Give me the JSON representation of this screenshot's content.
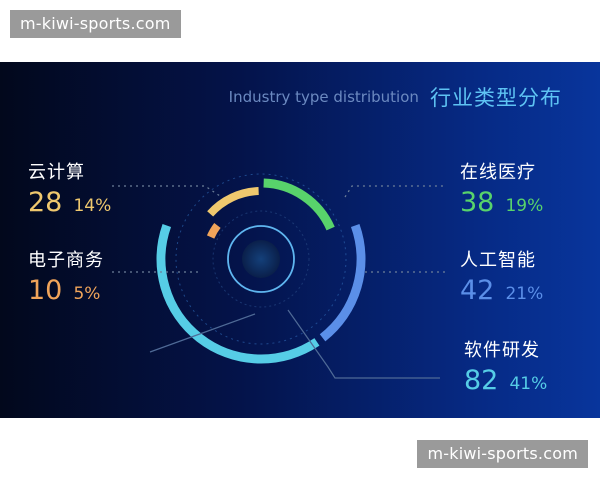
{
  "watermark": {
    "top": "m-kiwi-sports.com",
    "bottom": "m-kiwi-sports.com"
  },
  "chart_data": {
    "type": "pie",
    "title": "行业类型分布",
    "subtitle": "Industry type distribution",
    "legend": "around",
    "slices": [
      {
        "label": "在线医疗",
        "value": 38,
        "percent": "19%",
        "color": "#58d36b"
      },
      {
        "label": "人工智能",
        "value": 42,
        "percent": "21%",
        "color": "#5b8fe8"
      },
      {
        "label": "软件研发",
        "value": 82,
        "percent": "41%",
        "color": "#56cde6"
      },
      {
        "label": "电子商务",
        "value": 10,
        "percent": "5%",
        "color": "#f0a45a"
      },
      {
        "label": "云计算",
        "value": 28,
        "percent": "14%",
        "color": "#efc86e"
      }
    ]
  }
}
